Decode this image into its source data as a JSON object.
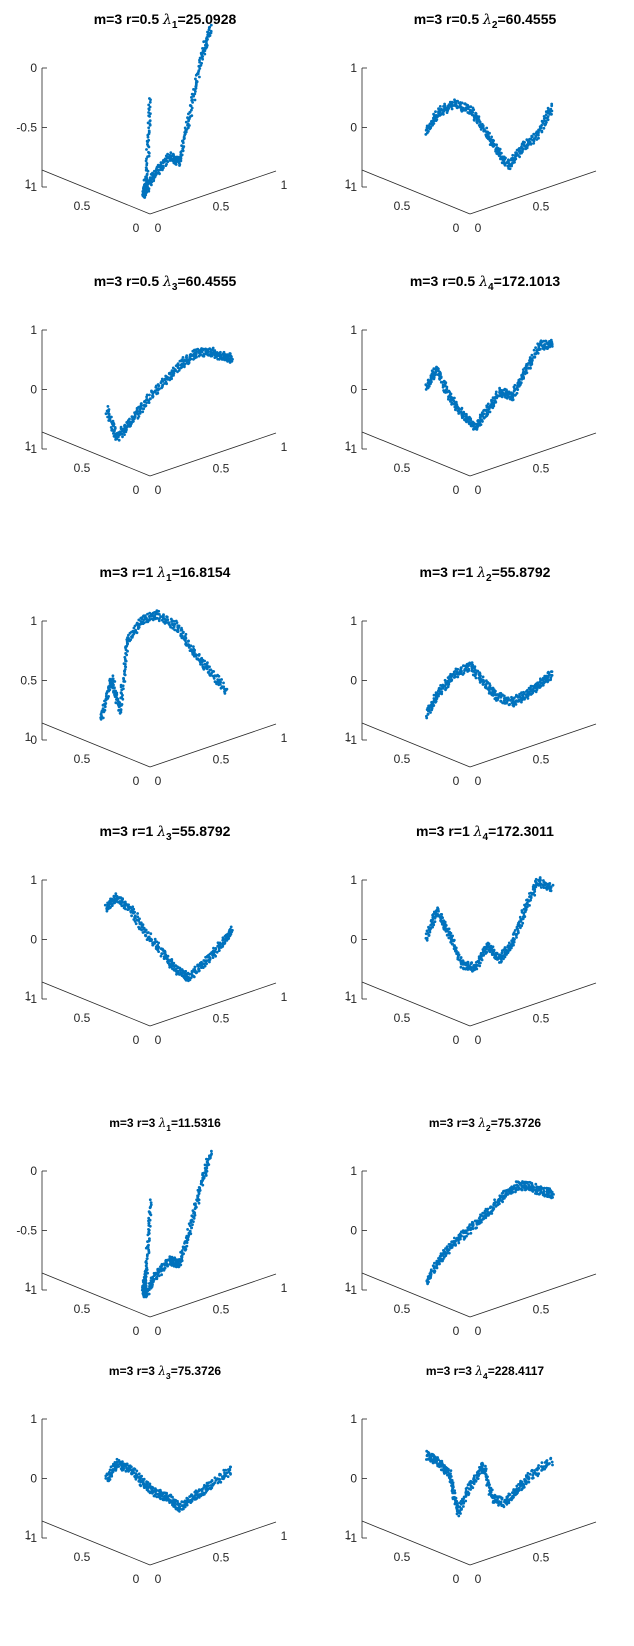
{
  "figure": {
    "marker_color": "#0072bd",
    "axis_color": "#262626"
  },
  "chart_data": [
    {
      "type": "scatter",
      "title": {
        "prefix": "m=3 r=0.5",
        "sub": "1",
        "value": "=25.0928"
      },
      "zlim": [
        -1,
        0
      ],
      "z_ticks": [
        "0",
        "-0.5",
        "-1"
      ],
      "y_ticks": [
        "1",
        "0.5",
        "0"
      ],
      "x_ticks": [
        "0",
        "0.5",
        "1"
      ],
      "series": [
        {
          "values": [
            [
              0.0,
              0.0,
              -0.05
            ],
            [
              0.06,
              0.1,
              -0.75
            ],
            [
              0.12,
              0.2,
              -0.95
            ],
            [
              0.22,
              0.3,
              -1.0
            ],
            [
              0.35,
              0.35,
              -0.9
            ],
            [
              0.5,
              0.4,
              -0.85
            ],
            [
              0.62,
              0.45,
              -0.95
            ],
            [
              0.75,
              0.5,
              -0.6
            ],
            [
              0.88,
              0.55,
              -0.2
            ],
            [
              1.0,
              0.6,
              0.0
            ]
          ]
        }
      ]
    },
    {
      "type": "scatter",
      "title": {
        "prefix": "m=3 r=0.5",
        "sub": "2",
        "value": "=60.4555"
      },
      "zlim": [
        -1,
        1
      ],
      "z_ticks": [
        "1",
        "0",
        "-1"
      ],
      "y_ticks": [
        "1",
        "0.5",
        "0"
      ],
      "x_ticks": [
        "0",
        "0.5"
      ],
      "series": [
        {
          "values": [
            [
              0.0,
              0.4,
              0.1
            ],
            [
              0.1,
              0.4,
              0.35
            ],
            [
              0.22,
              0.4,
              0.4
            ],
            [
              0.35,
              0.4,
              0.2
            ],
            [
              0.45,
              0.4,
              -0.2
            ],
            [
              0.55,
              0.4,
              -0.6
            ],
            [
              0.65,
              0.4,
              -0.95
            ],
            [
              0.75,
              0.4,
              -0.75
            ],
            [
              0.88,
              0.4,
              -0.6
            ],
            [
              1.0,
              0.4,
              -0.2
            ]
          ]
        }
      ]
    },
    {
      "type": "scatter",
      "title": {
        "prefix": "m=3 r=0.5",
        "sub": "3",
        "value": "=60.4555"
      },
      "zlim": [
        -1,
        1
      ],
      "z_ticks": [
        "1",
        "0",
        "-1"
      ],
      "y_ticks": [
        "1",
        "0.5",
        "0"
      ],
      "x_ticks": [
        "0",
        "0.5",
        "1"
      ],
      "series": [
        {
          "values": [
            [
              0.0,
              0.4,
              -0.2
            ],
            [
              0.08,
              0.4,
              -0.7
            ],
            [
              0.18,
              0.4,
              -0.55
            ],
            [
              0.3,
              0.4,
              -0.3
            ],
            [
              0.45,
              0.4,
              -0.05
            ],
            [
              0.58,
              0.4,
              0.15
            ],
            [
              0.7,
              0.4,
              0.25
            ],
            [
              0.82,
              0.4,
              0.2
            ],
            [
              0.92,
              0.4,
              0.05
            ],
            [
              1.0,
              0.4,
              -0.05
            ]
          ]
        }
      ]
    },
    {
      "type": "scatter",
      "title": {
        "prefix": "m=3 r=0.5",
        "sub": "4",
        "value": "=172.1013"
      },
      "zlim": [
        -1,
        1
      ],
      "z_ticks": [
        "1",
        "0",
        "-1"
      ],
      "y_ticks": [
        "1",
        "0.5",
        "0"
      ],
      "x_ticks": [
        "0",
        "0.5"
      ],
      "series": [
        {
          "values": [
            [
              0.0,
              0.4,
              0.2
            ],
            [
              0.08,
              0.4,
              0.45
            ],
            [
              0.18,
              0.4,
              -0.1
            ],
            [
              0.28,
              0.4,
              -0.45
            ],
            [
              0.38,
              0.4,
              -0.75
            ],
            [
              0.48,
              0.4,
              -0.55
            ],
            [
              0.58,
              0.4,
              -0.3
            ],
            [
              0.68,
              0.4,
              -0.45
            ],
            [
              0.78,
              0.4,
              -0.1
            ],
            [
              0.9,
              0.4,
              0.25
            ],
            [
              1.0,
              0.4,
              0.2
            ]
          ]
        }
      ]
    },
    {
      "type": "scatter",
      "title": {
        "prefix": "m=3 r=1",
        "sub": "1",
        "value": "=16.8154"
      },
      "zlim": [
        0,
        1
      ],
      "z_ticks": [
        "1",
        "0.5",
        "0"
      ],
      "y_ticks": [
        "1",
        "0.5",
        "0"
      ],
      "x_ticks": [
        "0",
        "0.5",
        "1"
      ],
      "series": [
        {
          "values": [
            [
              0.0,
              0.45,
              0.25
            ],
            [
              0.08,
              0.45,
              0.55
            ],
            [
              0.15,
              0.45,
              0.25
            ],
            [
              0.2,
              0.45,
              0.8
            ],
            [
              0.32,
              0.45,
              0.95
            ],
            [
              0.45,
              0.45,
              0.95
            ],
            [
              0.6,
              0.45,
              0.8
            ],
            [
              0.72,
              0.45,
              0.55
            ],
            [
              0.85,
              0.45,
              0.35
            ],
            [
              1.0,
              0.45,
              0.1
            ]
          ]
        }
      ]
    },
    {
      "type": "scatter",
      "title": {
        "prefix": "m=3 r=1",
        "sub": "2",
        "value": "=55.8792"
      },
      "zlim": [
        -1,
        1
      ],
      "z_ticks": [
        "1",
        "0",
        "-1"
      ],
      "y_ticks": [
        "1",
        "0.5",
        "0"
      ],
      "x_ticks": [
        "0",
        "0.5"
      ],
      "series": [
        {
          "values": [
            [
              0.0,
              0.4,
              -0.4
            ],
            [
              0.1,
              0.4,
              -0.1
            ],
            [
              0.22,
              0.4,
              0.1
            ],
            [
              0.35,
              0.4,
              0.15
            ],
            [
              0.45,
              0.4,
              -0.2
            ],
            [
              0.55,
              0.4,
              -0.5
            ],
            [
              0.68,
              0.4,
              -0.7
            ],
            [
              0.8,
              0.4,
              -0.65
            ],
            [
              0.9,
              0.4,
              -0.55
            ],
            [
              1.0,
              0.4,
              -0.45
            ]
          ]
        }
      ]
    },
    {
      "type": "scatter",
      "title": {
        "prefix": "m=3 r=1",
        "sub": "3",
        "value": "=55.8792"
      },
      "zlim": [
        -1,
        1
      ],
      "z_ticks": [
        "1",
        "0",
        "-1"
      ],
      "y_ticks": [
        "1",
        "0.5",
        "0"
      ],
      "x_ticks": [
        "0",
        "0.5",
        "1"
      ],
      "series": [
        {
          "values": [
            [
              0.0,
              0.4,
              0.7
            ],
            [
              0.08,
              0.4,
              0.8
            ],
            [
              0.2,
              0.4,
              0.5
            ],
            [
              0.32,
              0.4,
              0.0
            ],
            [
              0.45,
              0.4,
              -0.4
            ],
            [
              0.55,
              0.4,
              -0.75
            ],
            [
              0.65,
              0.4,
              -0.95
            ],
            [
              0.78,
              0.4,
              -0.8
            ],
            [
              0.9,
              0.4,
              -0.6
            ],
            [
              1.0,
              0.4,
              -0.4
            ]
          ]
        }
      ]
    },
    {
      "type": "scatter",
      "title": {
        "prefix": "m=3 r=1",
        "sub": "4",
        "value": "=172.3011"
      },
      "zlim": [
        -1,
        1
      ],
      "z_ticks": [
        "1",
        "0",
        "-1"
      ],
      "y_ticks": [
        "1",
        "0.5",
        "0"
      ],
      "x_ticks": [
        "0",
        "0.5"
      ],
      "series": [
        {
          "values": [
            [
              0.0,
              0.4,
              0.2
            ],
            [
              0.08,
              0.4,
              0.6
            ],
            [
              0.18,
              0.4,
              0.1
            ],
            [
              0.28,
              0.4,
              -0.45
            ],
            [
              0.38,
              0.4,
              -0.6
            ],
            [
              0.48,
              0.4,
              -0.3
            ],
            [
              0.58,
              0.4,
              -0.6
            ],
            [
              0.68,
              0.4,
              -0.4
            ],
            [
              0.78,
              0.4,
              0.1
            ],
            [
              0.88,
              0.4,
              0.5
            ],
            [
              1.0,
              0.4,
              0.3
            ]
          ]
        }
      ]
    },
    {
      "type": "scatter",
      "title": {
        "prefix": "m=3 r=3",
        "sub": "1",
        "value": "=11.5316"
      },
      "zlim": [
        -1,
        0
      ],
      "z_ticks": [
        "0",
        "-0.5",
        "-1"
      ],
      "y_ticks": [
        "1",
        "0.5",
        "0"
      ],
      "x_ticks": [
        "0",
        "0.5",
        "1"
      ],
      "series": [
        {
          "values": [
            [
              0.0,
              0.0,
              -0.05
            ],
            [
              0.06,
              0.1,
              -0.65
            ],
            [
              0.12,
              0.2,
              -0.9
            ],
            [
              0.22,
              0.3,
              -1.0
            ],
            [
              0.35,
              0.35,
              -0.9
            ],
            [
              0.5,
              0.4,
              -0.85
            ],
            [
              0.62,
              0.45,
              -0.95
            ],
            [
              0.75,
              0.5,
              -0.7
            ],
            [
              0.88,
              0.55,
              -0.4
            ],
            [
              1.0,
              0.6,
              -0.2
            ]
          ]
        }
      ]
    },
    {
      "type": "scatter",
      "title": {
        "prefix": "m=3 r=3",
        "sub": "2",
        "value": "=75.3726"
      },
      "zlim": [
        -1,
        1
      ],
      "z_ticks": [
        "1",
        "0",
        "-1"
      ],
      "y_ticks": [
        "1",
        "0.5",
        "0"
      ],
      "x_ticks": [
        "0",
        "0.5"
      ],
      "series": [
        {
          "values": [
            [
              0.0,
              0.4,
              -0.7
            ],
            [
              0.1,
              0.4,
              -0.4
            ],
            [
              0.22,
              0.4,
              -0.2
            ],
            [
              0.35,
              0.4,
              -0.05
            ],
            [
              0.48,
              0.4,
              0.1
            ],
            [
              0.6,
              0.4,
              0.3
            ],
            [
              0.72,
              0.4,
              0.4
            ],
            [
              0.82,
              0.4,
              0.3
            ],
            [
              0.92,
              0.4,
              0.15
            ],
            [
              1.0,
              0.4,
              0.05
            ]
          ]
        }
      ]
    },
    {
      "type": "scatter",
      "title": {
        "prefix": "m=3 r=3",
        "sub": "3",
        "value": "=75.3726"
      },
      "zlim": [
        -1,
        1
      ],
      "z_ticks": [
        "1",
        "0",
        "-1"
      ],
      "y_ticks": [
        "1",
        "0.5",
        "0"
      ],
      "x_ticks": [
        "0",
        "0.5",
        "1"
      ],
      "series": [
        {
          "values": [
            [
              0.0,
              0.4,
              0.15
            ],
            [
              0.08,
              0.4,
              0.35
            ],
            [
              0.18,
              0.4,
              0.2
            ],
            [
              0.28,
              0.4,
              -0.1
            ],
            [
              0.38,
              0.4,
              -0.35
            ],
            [
              0.48,
              0.4,
              -0.5
            ],
            [
              0.58,
              0.4,
              -0.75
            ],
            [
              0.7,
              0.4,
              -0.65
            ],
            [
              0.82,
              0.4,
              -0.55
            ],
            [
              1.0,
              0.4,
              -0.4
            ]
          ]
        }
      ]
    },
    {
      "type": "scatter",
      "title": {
        "prefix": "m=3 r=3",
        "sub": "4",
        "value": "=228.4117"
      },
      "zlim": [
        -1,
        1
      ],
      "z_ticks": [
        "1",
        "0",
        "-1"
      ],
      "y_ticks": [
        "1",
        "0.5",
        "0"
      ],
      "x_ticks": [
        "0",
        "0.5"
      ],
      "series": [
        {
          "values": [
            [
              0.0,
              0.4,
              0.55
            ],
            [
              0.08,
              0.4,
              0.4
            ],
            [
              0.18,
              0.4,
              0.1
            ],
            [
              0.25,
              0.4,
              -0.6
            ],
            [
              0.35,
              0.4,
              -0.2
            ],
            [
              0.45,
              0.4,
              0.05
            ],
            [
              0.52,
              0.4,
              -0.55
            ],
            [
              0.62,
              0.4,
              -0.7
            ],
            [
              0.72,
              0.4,
              -0.55
            ],
            [
              0.82,
              0.4,
              -0.4
            ],
            [
              1.0,
              0.4,
              -0.25
            ]
          ]
        }
      ]
    }
  ]
}
